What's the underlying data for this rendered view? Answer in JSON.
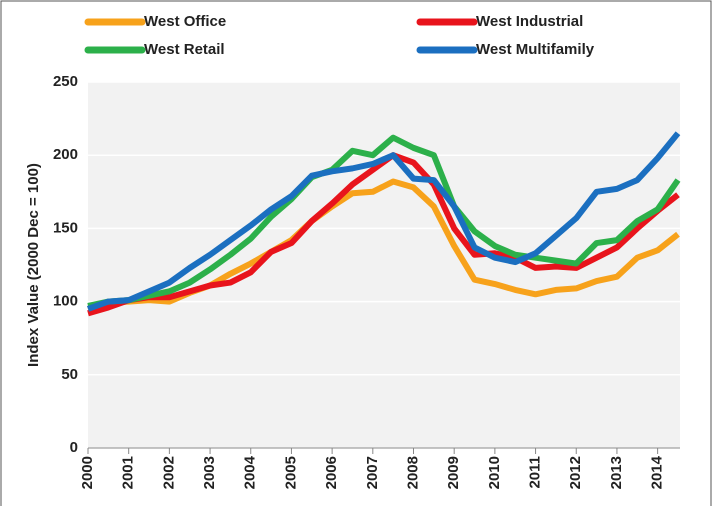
{
  "chart_data": {
    "type": "line",
    "y_label": "Index Value (2000 Dec = 100)",
    "x": [
      2000,
      2000.5,
      2001,
      2001.5,
      2002,
      2002.5,
      2003,
      2003.5,
      2004,
      2004.5,
      2005,
      2005.5,
      2006,
      2006.5,
      2007,
      2007.5,
      2008,
      2008.5,
      2009,
      2009.5,
      2010,
      2010.5,
      2011,
      2011.5,
      2012,
      2012.5,
      2013,
      2013.5,
      2014,
      2014.5
    ],
    "series": [
      {
        "name": "West Office",
        "color": "#f7a21b",
        "values": [
          95,
          99,
          100,
          101,
          100,
          106,
          111,
          119,
          126,
          134,
          142,
          155,
          165,
          174,
          175,
          182,
          178,
          165,
          138,
          115,
          112,
          108,
          105,
          108,
          109,
          114,
          117,
          130,
          135,
          146
        ]
      },
      {
        "name": "West Industrial",
        "color": "#e8141c",
        "values": [
          92,
          96,
          101,
          103,
          103,
          107,
          111,
          113,
          120,
          134,
          140,
          155,
          167,
          180,
          190,
          200,
          195,
          180,
          150,
          132,
          133,
          130,
          123,
          124,
          123,
          130,
          137,
          150,
          162,
          173
        ]
      },
      {
        "name": "West Retail",
        "color": "#2cb04a",
        "values": [
          97,
          100,
          101,
          104,
          107,
          113,
          122,
          132,
          143,
          158,
          170,
          185,
          190,
          203,
          200,
          212,
          205,
          200,
          165,
          148,
          138,
          132,
          130,
          128,
          126,
          140,
          142,
          155,
          163,
          183
        ]
      },
      {
        "name": "West Multifamily",
        "color": "#1b6fc0",
        "values": [
          95,
          100,
          101,
          107,
          113,
          123,
          132,
          142,
          152,
          163,
          172,
          186,
          189,
          191,
          194,
          200,
          184,
          183,
          165,
          137,
          130,
          127,
          133,
          145,
          157,
          175,
          177,
          183,
          198,
          215
        ]
      }
    ],
    "xlim": [
      2000,
      2014.55
    ],
    "xticks": [
      2000,
      2001,
      2002,
      2003,
      2004,
      2005,
      2006,
      2007,
      2008,
      2009,
      2010,
      2011,
      2012,
      2013,
      2014
    ],
    "ylim": [
      0,
      250
    ],
    "yticks": [
      0,
      50,
      100,
      150,
      200,
      250
    ],
    "grid": true
  }
}
